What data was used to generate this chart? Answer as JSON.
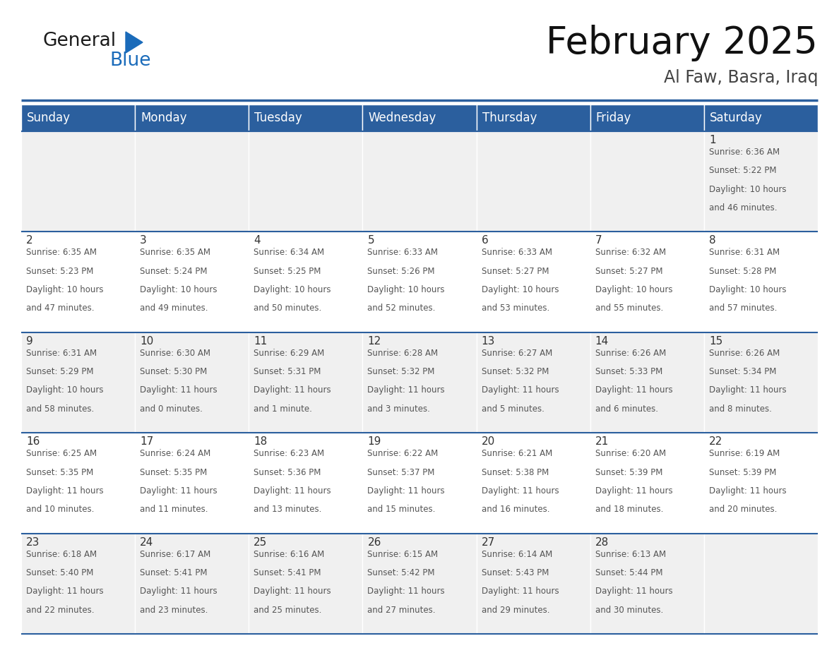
{
  "title": "February 2025",
  "subtitle": "Al Faw, Basra, Iraq",
  "header_bg": "#2B5F9E",
  "header_text": "#FFFFFF",
  "cell_bg_row0": "#F0F0F0",
  "cell_bg_row1": "#FFFFFF",
  "cell_bg_row2": "#F0F0F0",
  "cell_bg_row3": "#FFFFFF",
  "cell_bg_row4": "#F0F0F0",
  "day_headers": [
    "Sunday",
    "Monday",
    "Tuesday",
    "Wednesday",
    "Thursday",
    "Friday",
    "Saturday"
  ],
  "days": [
    {
      "day": 1,
      "col": 6,
      "row": 0,
      "sunrise": "6:36 AM",
      "sunset": "5:22 PM",
      "daylight": "10 hours and 46 minutes."
    },
    {
      "day": 2,
      "col": 0,
      "row": 1,
      "sunrise": "6:35 AM",
      "sunset": "5:23 PM",
      "daylight": "10 hours and 47 minutes."
    },
    {
      "day": 3,
      "col": 1,
      "row": 1,
      "sunrise": "6:35 AM",
      "sunset": "5:24 PM",
      "daylight": "10 hours and 49 minutes."
    },
    {
      "day": 4,
      "col": 2,
      "row": 1,
      "sunrise": "6:34 AM",
      "sunset": "5:25 PM",
      "daylight": "10 hours and 50 minutes."
    },
    {
      "day": 5,
      "col": 3,
      "row": 1,
      "sunrise": "6:33 AM",
      "sunset": "5:26 PM",
      "daylight": "10 hours and 52 minutes."
    },
    {
      "day": 6,
      "col": 4,
      "row": 1,
      "sunrise": "6:33 AM",
      "sunset": "5:27 PM",
      "daylight": "10 hours and 53 minutes."
    },
    {
      "day": 7,
      "col": 5,
      "row": 1,
      "sunrise": "6:32 AM",
      "sunset": "5:27 PM",
      "daylight": "10 hours and 55 minutes."
    },
    {
      "day": 8,
      "col": 6,
      "row": 1,
      "sunrise": "6:31 AM",
      "sunset": "5:28 PM",
      "daylight": "10 hours and 57 minutes."
    },
    {
      "day": 9,
      "col": 0,
      "row": 2,
      "sunrise": "6:31 AM",
      "sunset": "5:29 PM",
      "daylight": "10 hours and 58 minutes."
    },
    {
      "day": 10,
      "col": 1,
      "row": 2,
      "sunrise": "6:30 AM",
      "sunset": "5:30 PM",
      "daylight": "11 hours and 0 minutes."
    },
    {
      "day": 11,
      "col": 2,
      "row": 2,
      "sunrise": "6:29 AM",
      "sunset": "5:31 PM",
      "daylight": "11 hours and 1 minute."
    },
    {
      "day": 12,
      "col": 3,
      "row": 2,
      "sunrise": "6:28 AM",
      "sunset": "5:32 PM",
      "daylight": "11 hours and 3 minutes."
    },
    {
      "day": 13,
      "col": 4,
      "row": 2,
      "sunrise": "6:27 AM",
      "sunset": "5:32 PM",
      "daylight": "11 hours and 5 minutes."
    },
    {
      "day": 14,
      "col": 5,
      "row": 2,
      "sunrise": "6:26 AM",
      "sunset": "5:33 PM",
      "daylight": "11 hours and 6 minutes."
    },
    {
      "day": 15,
      "col": 6,
      "row": 2,
      "sunrise": "6:26 AM",
      "sunset": "5:34 PM",
      "daylight": "11 hours and 8 minutes."
    },
    {
      "day": 16,
      "col": 0,
      "row": 3,
      "sunrise": "6:25 AM",
      "sunset": "5:35 PM",
      "daylight": "11 hours and 10 minutes."
    },
    {
      "day": 17,
      "col": 1,
      "row": 3,
      "sunrise": "6:24 AM",
      "sunset": "5:35 PM",
      "daylight": "11 hours and 11 minutes."
    },
    {
      "day": 18,
      "col": 2,
      "row": 3,
      "sunrise": "6:23 AM",
      "sunset": "5:36 PM",
      "daylight": "11 hours and 13 minutes."
    },
    {
      "day": 19,
      "col": 3,
      "row": 3,
      "sunrise": "6:22 AM",
      "sunset": "5:37 PM",
      "daylight": "11 hours and 15 minutes."
    },
    {
      "day": 20,
      "col": 4,
      "row": 3,
      "sunrise": "6:21 AM",
      "sunset": "5:38 PM",
      "daylight": "11 hours and 16 minutes."
    },
    {
      "day": 21,
      "col": 5,
      "row": 3,
      "sunrise": "6:20 AM",
      "sunset": "5:39 PM",
      "daylight": "11 hours and 18 minutes."
    },
    {
      "day": 22,
      "col": 6,
      "row": 3,
      "sunrise": "6:19 AM",
      "sunset": "5:39 PM",
      "daylight": "11 hours and 20 minutes."
    },
    {
      "day": 23,
      "col": 0,
      "row": 4,
      "sunrise": "6:18 AM",
      "sunset": "5:40 PM",
      "daylight": "11 hours and 22 minutes."
    },
    {
      "day": 24,
      "col": 1,
      "row": 4,
      "sunrise": "6:17 AM",
      "sunset": "5:41 PM",
      "daylight": "11 hours and 23 minutes."
    },
    {
      "day": 25,
      "col": 2,
      "row": 4,
      "sunrise": "6:16 AM",
      "sunset": "5:41 PM",
      "daylight": "11 hours and 25 minutes."
    },
    {
      "day": 26,
      "col": 3,
      "row": 4,
      "sunrise": "6:15 AM",
      "sunset": "5:42 PM",
      "daylight": "11 hours and 27 minutes."
    },
    {
      "day": 27,
      "col": 4,
      "row": 4,
      "sunrise": "6:14 AM",
      "sunset": "5:43 PM",
      "daylight": "11 hours and 29 minutes."
    },
    {
      "day": 28,
      "col": 5,
      "row": 4,
      "sunrise": "6:13 AM",
      "sunset": "5:44 PM",
      "daylight": "11 hours and 30 minutes."
    }
  ],
  "logo_text1": "General",
  "logo_text2": "Blue",
  "logo_color1": "#1a1a1a",
  "logo_color2": "#1a6bba",
  "logo_triangle_color": "#1a6bba",
  "title_fontsize": 38,
  "subtitle_fontsize": 17,
  "header_fontsize": 12,
  "day_num_fontsize": 11,
  "cell_text_fontsize": 8.5,
  "num_rows": 5,
  "border_color": "#2B5F9E"
}
